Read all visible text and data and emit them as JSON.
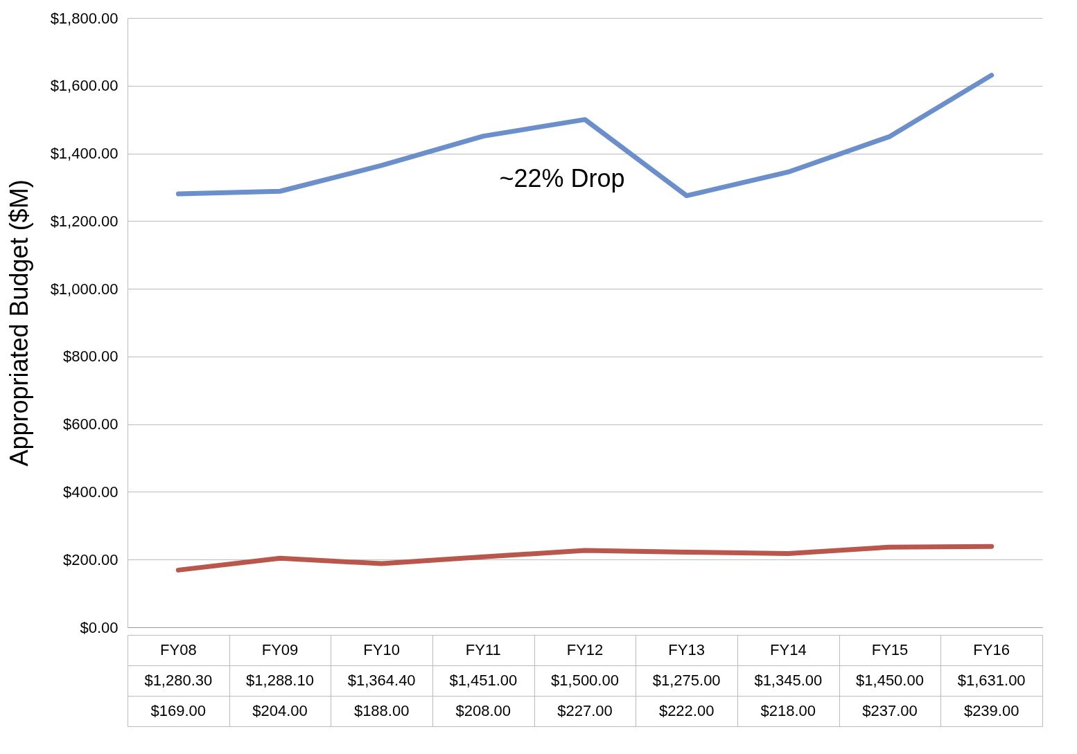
{
  "chart_data": {
    "type": "line",
    "ylabel": "Appropriated Budget ($M)",
    "categories": [
      "FY08",
      "FY09",
      "FY10",
      "FY11",
      "FY12",
      "FY13",
      "FY14",
      "FY15",
      "FY16"
    ],
    "series": [
      {
        "color": "#6b8fca",
        "values": [
          1280.3,
          1288.1,
          1364.4,
          1451,
          1500,
          1275,
          1345,
          1450,
          1631
        ],
        "value_labels": [
          "$1,280.30",
          "$1,288.10",
          "$1,364.40",
          "$1,451.00",
          "$1,500.00",
          "$1,275.00",
          "$1,345.00",
          "$1,450.00",
          "$1,631.00"
        ]
      },
      {
        "color": "#b9574c",
        "values": [
          169,
          204,
          188,
          208,
          227,
          222,
          218,
          237,
          239
        ],
        "value_labels": [
          "$169.00",
          "$204.00",
          "$188.00",
          "$208.00",
          "$227.00",
          "$222.00",
          "$218.00",
          "$237.00",
          "$239.00"
        ]
      }
    ],
    "ylim": [
      0,
      1800
    ],
    "yticks": [
      {
        "value": 0,
        "label": "$0.00"
      },
      {
        "value": 200,
        "label": "$200.00"
      },
      {
        "value": 400,
        "label": "$400.00"
      },
      {
        "value": 600,
        "label": "$600.00"
      },
      {
        "value": 800,
        "label": "$800.00"
      },
      {
        "value": 1000,
        "label": "$1,000.00"
      },
      {
        "value": 1200,
        "label": "$1,200.00"
      },
      {
        "value": 1400,
        "label": "$1,400.00"
      },
      {
        "value": 1600,
        "label": "$1,600.00"
      },
      {
        "value": 1800,
        "label": "$1,800.00"
      }
    ],
    "grid": "y",
    "line_style": "solid",
    "marker": "none",
    "legend": false,
    "annotations": [
      "~22% Drop"
    ]
  }
}
